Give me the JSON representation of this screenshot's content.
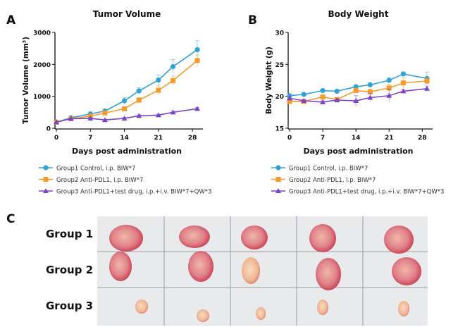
{
  "panels": {
    "a": "A",
    "b": "B",
    "c": "C"
  },
  "colors": {
    "group1": "#2ea3d4",
    "group2": "#f59a2b",
    "group3": "#7b45c8"
  },
  "legend": [
    "Group1 Control, i.p. BIW*7",
    "Group2 Anti-PDL1, i.p. BIW*7",
    "Group3 Anti-PDL1+test drug, i.p.+i.v. BIW*7+QW*3"
  ],
  "chart_data": [
    {
      "type": "line",
      "title": "Tumor Volume",
      "xlabel": "Days post administration",
      "ylabel": "Tumor Volume (mm³)",
      "x": [
        0,
        3,
        7,
        10,
        14,
        17,
        21,
        24,
        29
      ],
      "xticks": [
        "0",
        "7",
        "14",
        "21",
        "28"
      ],
      "yticks": [
        "0",
        "1000",
        "2000",
        "3000"
      ],
      "xlim": [
        0,
        29
      ],
      "ylim": [
        0,
        3000
      ],
      "series": [
        {
          "name": "Group1 Control, i.p. BIW*7",
          "values": [
            190,
            330,
            450,
            540,
            860,
            1170,
            1510,
            1930,
            2460
          ],
          "errors": [
            20,
            30,
            30,
            40,
            100,
            100,
            160,
            220,
            280
          ]
        },
        {
          "name": "Group2 Anti-PDL1, i.p. BIW*7",
          "values": [
            190,
            300,
            380,
            480,
            610,
            880,
            1190,
            1490,
            2120
          ],
          "errors": [
            20,
            30,
            30,
            40,
            50,
            80,
            140,
            140,
            170
          ]
        },
        {
          "name": "Group3 Anti-PDL1+test drug, i.p.+i.v. BIW*7+QW*3",
          "values": [
            190,
            300,
            310,
            260,
            310,
            390,
            410,
            500,
            610
          ],
          "errors": [
            20,
            20,
            20,
            20,
            30,
            30,
            30,
            40,
            40
          ]
        }
      ]
    },
    {
      "type": "line",
      "title": "Body Weight",
      "xlabel": "Days post administration",
      "ylabel": "Body Weight (g)",
      "x": [
        0,
        3,
        7,
        10,
        14,
        17,
        21,
        24,
        29
      ],
      "xticks": [
        "0",
        "7",
        "14",
        "21",
        "28"
      ],
      "yticks": [
        "15",
        "20",
        "25",
        "30"
      ],
      "xlim": [
        0,
        29
      ],
      "ylim": [
        15,
        30
      ],
      "series": [
        {
          "name": "Group1 Control, i.p. BIW*7",
          "values": [
            20.1,
            20.3,
            20.9,
            20.8,
            21.5,
            21.8,
            22.5,
            23.5,
            22.8
          ],
          "errors": [
            0.2,
            0.2,
            0.2,
            0.2,
            0.3,
            0.3,
            0.4,
            0.3,
            1.0
          ]
        },
        {
          "name": "Group2 Anti-PDL1, i.p. BIW*7",
          "values": [
            19.2,
            19.2,
            19.9,
            19.5,
            20.9,
            20.7,
            21.3,
            22.1,
            22.4
          ],
          "errors": [
            0.2,
            0.2,
            0.3,
            0.3,
            0.4,
            0.4,
            0.6,
            0.8,
            0.6
          ]
        },
        {
          "name": "Group3 Anti-PDL1+test drug, i.p.+i.v. BIW*7+QW*3",
          "values": [
            19.7,
            19.3,
            19.1,
            19.4,
            19.3,
            19.8,
            20.1,
            20.8,
            21.2
          ],
          "errors": [
            0.2,
            0.2,
            0.2,
            0.2,
            0.8,
            0.6,
            1.0,
            0.3,
            0.4
          ]
        }
      ]
    }
  ],
  "photo": {
    "rows": [
      "Group 1",
      "Group 2",
      "Group 3"
    ]
  }
}
